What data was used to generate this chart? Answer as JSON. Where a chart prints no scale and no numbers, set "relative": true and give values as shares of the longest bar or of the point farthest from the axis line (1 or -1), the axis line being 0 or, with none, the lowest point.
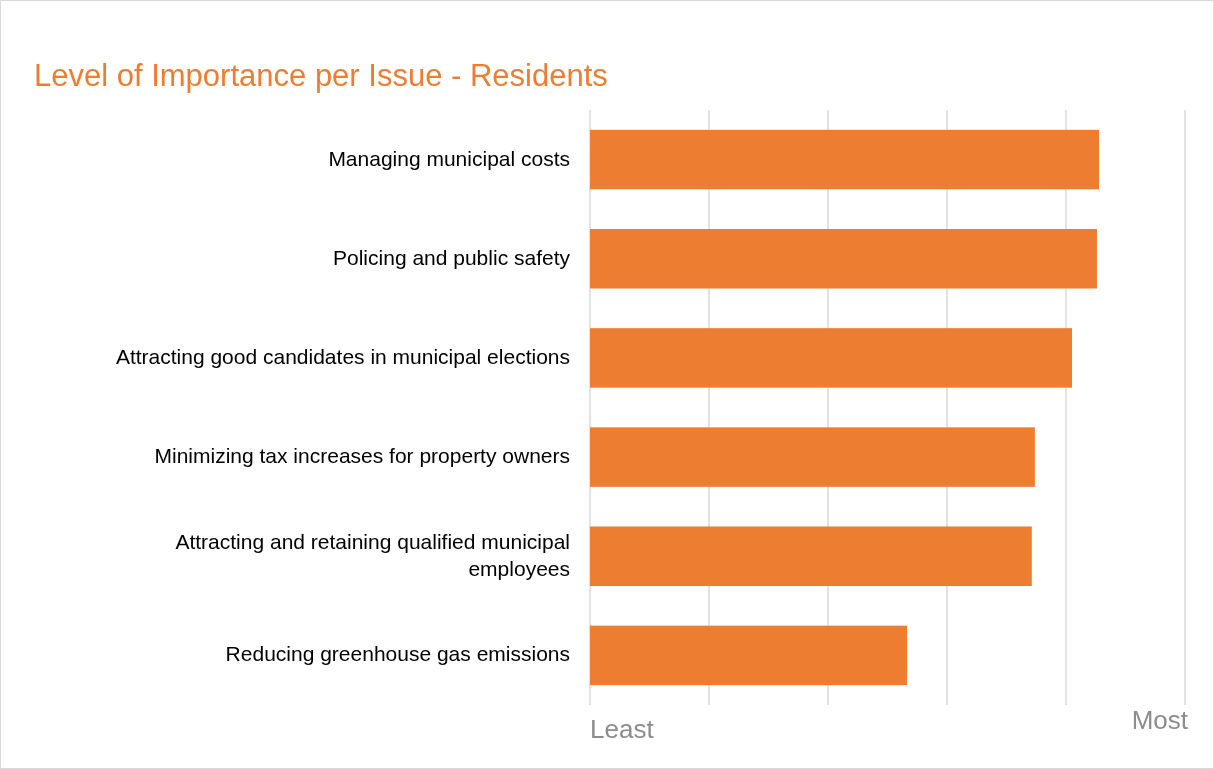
{
  "chart_data": {
    "type": "bar",
    "orientation": "horizontal",
    "relative": true,
    "title": "Level of Importance per Issue - Residents",
    "categories": [
      "Managing municipal costs",
      "Policing and public safety",
      "Attracting good candidates in municipal elections",
      "Minimizing tax increases for property owners",
      "Attracting and retaining qualified municipal employees",
      "Reducing greenhouse gas emissions"
    ],
    "values": [
      1,
      0.996,
      0.947,
      0.874,
      0.868,
      0.623
    ],
    "color": "#ed7d31",
    "grid": true,
    "annotations": [
      "Least",
      "Most"
    ]
  }
}
